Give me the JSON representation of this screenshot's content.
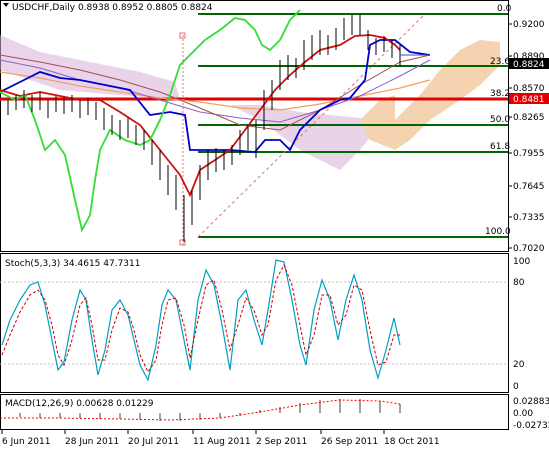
{
  "main_panel": {
    "title": "USDCHF,Daily  0.8938 0.8952 0.8805 0.8824",
    "price_ticks": [
      "0.9200",
      "0.8890",
      "0.8570",
      "0.8265",
      "0.7955",
      "0.7645",
      "0.7335",
      "0.7020"
    ],
    "current_price": "0.8824",
    "red_line_price": "0.8481",
    "fib_levels": [
      "0.0",
      "23.6",
      "38.2",
      "50.0",
      "61.8",
      "100.0"
    ],
    "colors": {
      "background": "#ffffff",
      "fib": "#006400",
      "price_line": "#e00000",
      "current_price_box": "#000000",
      "ichimoku_cloud": "#c8a0c8",
      "ichimoku_cloud_alt": "#f0b070",
      "chikou": "#33dd33",
      "kijun": "#0000cc"
    }
  },
  "stoch_panel": {
    "title": "Stoch(5,3,3)  34.4615 47.7311",
    "ticks": [
      "100",
      "80",
      "20",
      "0"
    ],
    "colors": {
      "main": "#00a0c0",
      "signal": "#cc0000"
    }
  },
  "macd_panel": {
    "title": "MACD(12,26,9)  0.00628  0.01229",
    "ticks": [
      "0.02883",
      "0.00",
      "-0.02732"
    ],
    "colors": {
      "histogram": "#a0a0a0",
      "signal": "#ff0000"
    }
  },
  "time_axis": {
    "labels": [
      "6 Jun 2011",
      "28 Jun 2011",
      "20 Jul 2011",
      "11 Aug 2011",
      "2 Sep 2011",
      "26 Sep 2011",
      "18 Oct 2011"
    ]
  },
  "chart_data": [
    {
      "type": "line",
      "title": "USDCHF,Daily",
      "x": [
        "6 Jun 2011",
        "28 Jun 2011",
        "20 Jul 2011",
        "11 Aug 2011",
        "2 Sep 2011",
        "26 Sep 2011",
        "18 Oct 2011"
      ],
      "series": [
        {
          "name": "",
          "values": [
            0.83,
            0.83,
            0.81,
            0.775,
            0.845,
            0.905,
            0.882
          ]
        }
      ],
      "ylim": [
        0.702,
        0.92
      ],
      "ohlc_last": {
        "open": 0.8938,
        "high": 0.8952,
        "low": 0.8805,
        "close": 0.8824
      },
      "levels": [
        {
          "label": "0.0",
          "value": 0.927
        },
        {
          "label": "23.6",
          "value": 0.8824
        },
        {
          "label": "38.2",
          "value": 0.8481
        },
        {
          "label": "50.0",
          "value": 0.8265
        },
        {
          "label": "61.8",
          "value": 0.7955
        },
        {
          "label": "100.0",
          "value": 0.706
        }
      ]
    },
    {
      "type": "line",
      "title": "Stoch(5,3,3)",
      "ylim": [
        0,
        100
      ],
      "series": [
        {
          "name": "",
          "values": [
            34.4615
          ]
        },
        {
          "name": "",
          "values": [
            47.7311
          ]
        }
      ]
    },
    {
      "type": "bar",
      "title": "MACD(12,26,9)",
      "ylim": [
        -0.02732,
        0.02883
      ],
      "series": [
        {
          "name": "",
          "values": [
            0.00628
          ]
        },
        {
          "name": "",
          "values": [
            0.01229
          ]
        }
      ]
    }
  ]
}
